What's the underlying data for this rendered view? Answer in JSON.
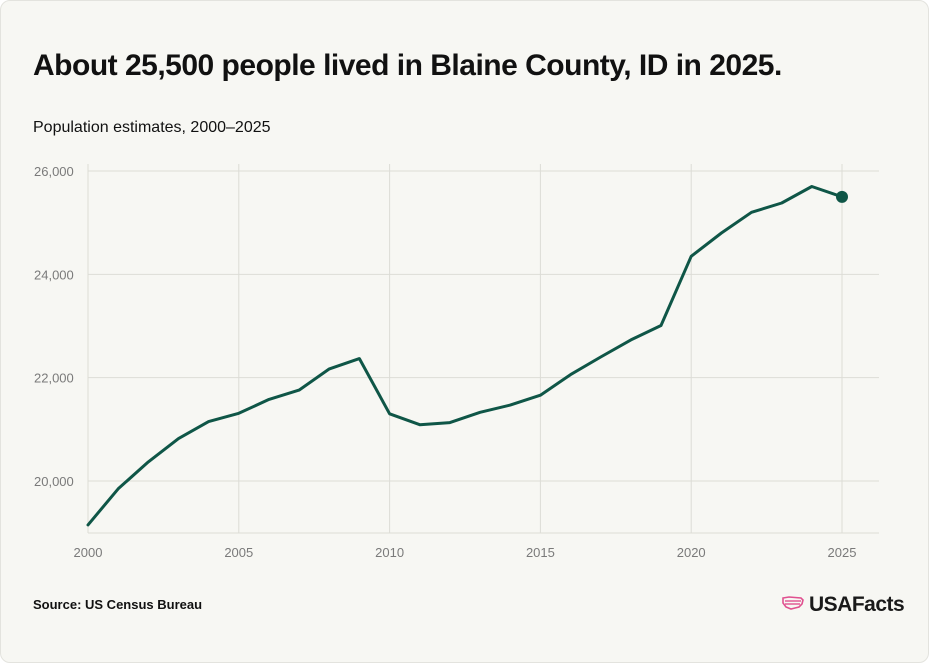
{
  "header": {
    "title": "About 25,500 people lived in Blaine County, ID in 2025.",
    "subtitle": "Population estimates, 2000–2025"
  },
  "footer": {
    "source": "Source: US Census Bureau",
    "logo_text": "USAFacts",
    "logo_icon": "us-map-flag-icon"
  },
  "colors": {
    "line": "#0f5647",
    "grid": "#dcdcd6",
    "tick_text": "#7a7a7a",
    "logo_accent": "#e0508f"
  },
  "chart_data": {
    "type": "line",
    "x": [
      2000,
      2001,
      2002,
      2003,
      2004,
      2005,
      2006,
      2007,
      2008,
      2009,
      2010,
      2011,
      2012,
      2013,
      2014,
      2015,
      2016,
      2017,
      2018,
      2019,
      2020,
      2021,
      2022,
      2023,
      2024,
      2025
    ],
    "series": [
      {
        "values": [
          19150,
          19850,
          20370,
          20820,
          21150,
          21310,
          21580,
          21760,
          22170,
          22370,
          21300,
          21090,
          21130,
          21330,
          21470,
          21660,
          22060,
          22400,
          22730,
          23010,
          24350,
          24800,
          25200,
          25380,
          25700,
          25500
        ]
      }
    ],
    "xlim": [
      2000,
      2025
    ],
    "ylim": [
      19000,
      26000
    ],
    "xticks": [
      2000,
      2005,
      2010,
      2015,
      2020,
      2025
    ],
    "yticks": [
      20000,
      22000,
      24000,
      26000
    ],
    "xtick_labels": [
      "2000",
      "2005",
      "2010",
      "2015",
      "2020",
      "2025"
    ],
    "ytick_labels": [
      "20,000",
      "22,000",
      "24,000",
      "26,000"
    ],
    "grid": true,
    "end_marker": true
  }
}
